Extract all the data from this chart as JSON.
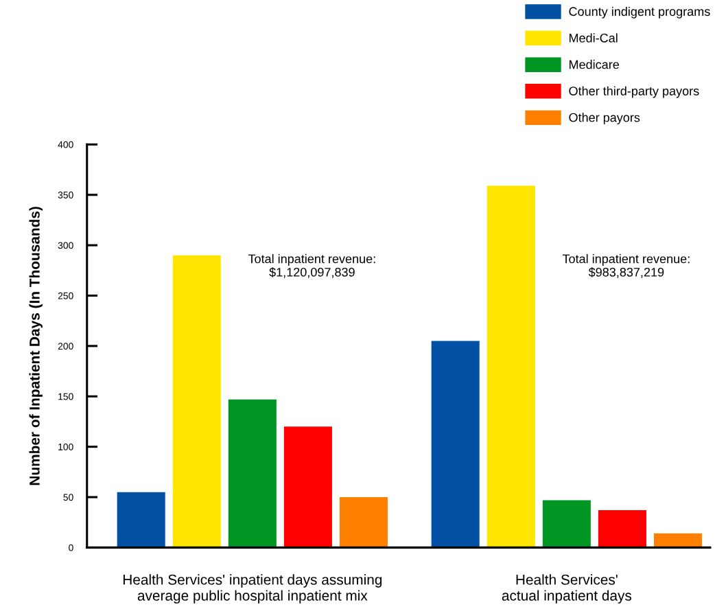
{
  "chart_data": {
    "type": "bar",
    "ylabel": "Number of Inpatient Days (In Thousands)",
    "categories": [
      "Health Services' inpatient days assuming\naverage public hospital inpatient mix",
      "Health Services'\nactual inpatient days"
    ],
    "series": [
      {
        "name": "County indigent programs",
        "color": "#0250a4",
        "values": [
          55,
          205
        ]
      },
      {
        "name": "Medi-Cal",
        "color": "#ffe500",
        "values": [
          290,
          359
        ]
      },
      {
        "name": "Medicare",
        "color": "#009624",
        "values": [
          147,
          47
        ]
      },
      {
        "name": "Other third-party payors",
        "color": "#fe0000",
        "values": [
          120,
          37
        ]
      },
      {
        "name": "Other payors",
        "color": "#ff8000",
        "values": [
          50,
          14
        ]
      }
    ],
    "ylim": [
      0,
      400
    ],
    "yticks": [
      0,
      50,
      100,
      150,
      200,
      250,
      300,
      350,
      400
    ],
    "grid": false,
    "legend": "top right",
    "annotations": [
      "Total inpatient revenue:\n$1,120,097,839",
      "Total inpatient revenue:\n$983,837,219"
    ]
  }
}
